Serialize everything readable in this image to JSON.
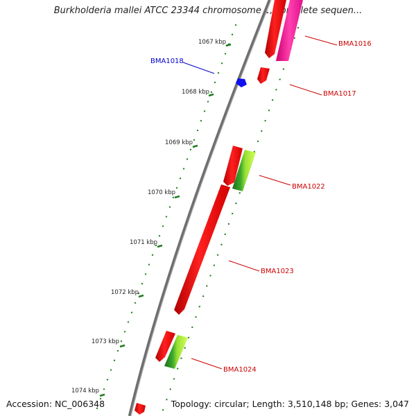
{
  "title": "Burkholderia mallei ATCC 23344 chromosome 1, complete sequen...",
  "footer": {
    "accession": "Accession: NC_006348",
    "stats": "Topology: circular; Length: 3,510,148 bp; Genes: 3,047"
  },
  "colors": {
    "backbone": "#7a7a7a",
    "ticks": "#1e7a1e",
    "gene_red": "#ee1111",
    "gene_pink": "#ff2aa0",
    "gene_blue": "#1010ee",
    "gene_green_dark": "#2a8a22",
    "gene_green_light": "#b6f03c",
    "label_red": "#cc0000",
    "label_blue": "#0000cc"
  },
  "scale": {
    "unit": "kbp",
    "tick_labels": [
      "1067 kbp",
      "1068 kbp",
      "1069 kbp",
      "1070 kbp",
      "1071 kbp",
      "1072 kbp",
      "1073 kbp",
      "1074 kbp"
    ]
  },
  "genes": [
    {
      "label": "BMA1016",
      "color": "red"
    },
    {
      "label": "BMA1017",
      "color": "red"
    },
    {
      "label": "BMA1018",
      "color": "blue"
    },
    {
      "label": "BMA1022",
      "color": "green"
    },
    {
      "label": "BMA1023",
      "color": "red"
    },
    {
      "label": "BMA1024",
      "color": "red"
    }
  ]
}
